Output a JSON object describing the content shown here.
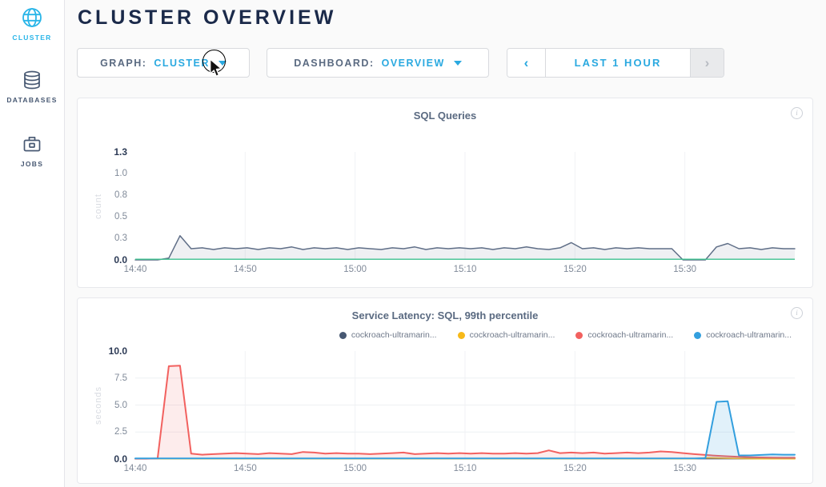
{
  "header": {
    "title": "CLUSTER OVERVIEW"
  },
  "sidebar": {
    "items": [
      {
        "label": "CLUSTER",
        "icon": "globe-icon",
        "active": true
      },
      {
        "label": "DATABASES",
        "icon": "databases-icon",
        "active": false
      },
      {
        "label": "JOBS",
        "icon": "briefcase-icon",
        "active": false
      }
    ]
  },
  "controls": {
    "graph": {
      "label": "GRAPH:",
      "value": "CLUSTER"
    },
    "dashboard": {
      "label": "DASHBOARD:",
      "value": "OVERVIEW"
    },
    "time": {
      "prev": "‹",
      "label": "LAST 1 HOUR",
      "next": "›"
    }
  },
  "icons": {
    "info": "i"
  },
  "colors": {
    "accent": "#2aa9e0",
    "sidebar_active": "#29b5e8",
    "title_navy": "#1b2a4a",
    "baseline_green": "#3ec28f",
    "series_slate": "#5f6e87",
    "series_navy": "#475872",
    "series_yellow": "#f7b918",
    "series_red": "#f2615f",
    "series_blue": "#339fde"
  },
  "chart_data": [
    {
      "type": "area",
      "title": "SQL Queries",
      "ylabel": "count",
      "x_ticks": [
        "14:40",
        "14:50",
        "15:00",
        "15:10",
        "15:20",
        "15:30"
      ],
      "x_range": [
        "14:40",
        "15:40"
      ],
      "y_ticks": [
        "0.0",
        "0.3",
        "0.5",
        "0.8",
        "1.0",
        "1.3"
      ],
      "ymax": 1.25,
      "h_grid": false,
      "baseline_color": "#3ec28f",
      "baseline_on_top": true,
      "legend": false,
      "series": [
        {
          "name": "SQL queries",
          "color": "#5f6e87",
          "fill": "rgba(95,110,135,0.10)",
          "width": 1.5,
          "values": [
            0,
            0,
            0,
            0.02,
            0.28,
            0.13,
            0.14,
            0.12,
            0.14,
            0.13,
            0.14,
            0.12,
            0.14,
            0.13,
            0.15,
            0.12,
            0.14,
            0.13,
            0.14,
            0.12,
            0.14,
            0.13,
            0.12,
            0.14,
            0.13,
            0.15,
            0.12,
            0.14,
            0.13,
            0.14,
            0.13,
            0.14,
            0.12,
            0.14,
            0.13,
            0.15,
            0.13,
            0.12,
            0.14,
            0.2,
            0.13,
            0.14,
            0.12,
            0.14,
            0.13,
            0.14,
            0.13,
            0.13,
            0.13,
            0,
            0,
            0,
            0.15,
            0.19,
            0.13,
            0.14,
            0.12,
            0.14,
            0.13,
            0.13
          ]
        }
      ]
    },
    {
      "type": "area",
      "title": "Service Latency: SQL, 99th percentile",
      "ylabel": "seconds",
      "x_ticks": [
        "14:40",
        "14:50",
        "15:00",
        "15:10",
        "15:20",
        "15:30"
      ],
      "x_range": [
        "14:40",
        "15:40"
      ],
      "y_ticks": [
        "0.0",
        "2.5",
        "5.0",
        "7.5",
        "10.0"
      ],
      "ymax": 10,
      "h_grid": true,
      "baseline_color": "#3ec28f",
      "baseline_on_top": false,
      "legend": true,
      "series": [
        {
          "name": "cockroach-ultramarin...",
          "color": "#475872",
          "fill": "none",
          "width": 1.6,
          "values": [
            0.03,
            0.03,
            0.03,
            0.03,
            0.03,
            0.03,
            0.03,
            0.03,
            0.03,
            0.03,
            0.03,
            0.03,
            0.03,
            0.03,
            0.03,
            0.03,
            0.03,
            0.03,
            0.03,
            0.03,
            0.03,
            0.03,
            0.03,
            0.03,
            0.03,
            0.03,
            0.03,
            0.03,
            0.03,
            0.03,
            0.03,
            0.03,
            0.03,
            0.03,
            0.03,
            0.03,
            0.03,
            0.03,
            0.03,
            0.03,
            0.03,
            0.03,
            0.03,
            0.03,
            0.03,
            0.03,
            0.03,
            0.03,
            0.03,
            0.03,
            0.03,
            0.03,
            0.03,
            0.03,
            0.03,
            0.03,
            0.03,
            0.03,
            0.03,
            0.03
          ]
        },
        {
          "name": "cockroach-ultramarin...",
          "color": "#f7b918",
          "fill": "none",
          "width": 1.6,
          "values": [
            0.02,
            0.02,
            0.02,
            0.02,
            0.02,
            0.02,
            0.02,
            0.02,
            0.02,
            0.02,
            0.02,
            0.02,
            0.02,
            0.02,
            0.02,
            0.02,
            0.02,
            0.02,
            0.02,
            0.02,
            0.02,
            0.02,
            0.02,
            0.02,
            0.02,
            0.02,
            0.02,
            0.02,
            0.02,
            0.02,
            0.02,
            0.02,
            0.02,
            0.02,
            0.02,
            0.02,
            0.02,
            0.02,
            0.02,
            0.02,
            0.02,
            0.02,
            0.02,
            0.02,
            0.02,
            0.02,
            0.02,
            0.02,
            0.02,
            0.02,
            0.02,
            0.12,
            0.1,
            0.07,
            0.05,
            0.03,
            0.02,
            0.02,
            0.02,
            0.02
          ]
        },
        {
          "name": "cockroach-ultramarin...",
          "color": "#f2615f",
          "fill": "rgba(242,97,95,0.12)",
          "width": 2,
          "values": [
            0.03,
            0.03,
            0.05,
            8.6,
            8.65,
            0.5,
            0.4,
            0.45,
            0.5,
            0.55,
            0.5,
            0.45,
            0.55,
            0.5,
            0.45,
            0.65,
            0.6,
            0.5,
            0.55,
            0.5,
            0.5,
            0.45,
            0.5,
            0.55,
            0.6,
            0.45,
            0.5,
            0.55,
            0.5,
            0.55,
            0.5,
            0.55,
            0.5,
            0.5,
            0.55,
            0.5,
            0.55,
            0.8,
            0.55,
            0.6,
            0.55,
            0.6,
            0.5,
            0.55,
            0.6,
            0.55,
            0.6,
            0.7,
            0.65,
            0.55,
            0.45,
            0.38,
            0.3,
            0.25,
            0.2,
            0.17,
            0.15,
            0.13,
            0.12,
            0.12
          ]
        },
        {
          "name": "cockroach-ultramarin...",
          "color": "#339fde",
          "fill": "rgba(51,159,222,0.15)",
          "width": 2,
          "values": [
            0.06,
            0.06,
            0.06,
            0.06,
            0.06,
            0.06,
            0.06,
            0.06,
            0.06,
            0.06,
            0.06,
            0.06,
            0.06,
            0.06,
            0.06,
            0.06,
            0.06,
            0.06,
            0.06,
            0.06,
            0.06,
            0.06,
            0.06,
            0.06,
            0.06,
            0.06,
            0.06,
            0.06,
            0.06,
            0.06,
            0.06,
            0.06,
            0.06,
            0.06,
            0.06,
            0.06,
            0.06,
            0.06,
            0.06,
            0.06,
            0.06,
            0.06,
            0.06,
            0.06,
            0.06,
            0.06,
            0.06,
            0.06,
            0.06,
            0.06,
            0.06,
            0.08,
            5.3,
            5.35,
            0.33,
            0.33,
            0.38,
            0.42,
            0.4,
            0.4
          ]
        }
      ]
    }
  ]
}
